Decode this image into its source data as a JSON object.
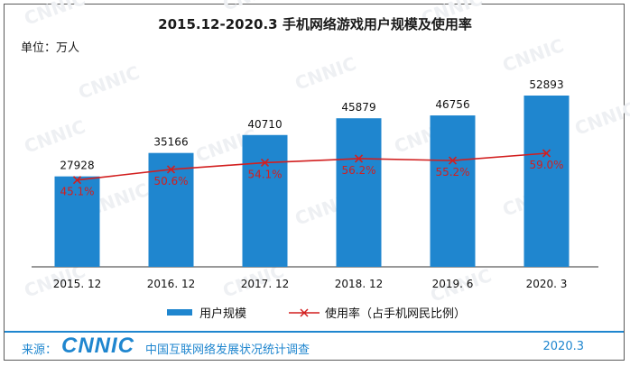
{
  "chart_data": {
    "type": "bar",
    "title": "2015.12-2020.3 手机网络游戏用户规模及使用率",
    "unit": "单位：万人",
    "categories": [
      "2015. 12",
      "2016. 12",
      "2017. 12",
      "2018. 12",
      "2019. 6",
      "2020. 3"
    ],
    "series": [
      {
        "name": "用户规模",
        "type": "bar",
        "values": [
          27928,
          35166,
          40710,
          45879,
          46756,
          52893
        ],
        "labels": [
          "27928",
          "35166",
          "40710",
          "45879",
          "46756",
          "52893"
        ],
        "color": "#1f86cf"
      },
      {
        "name": "使用率（占手机网民比例）",
        "type": "line",
        "values": [
          45.1,
          50.6,
          54.1,
          56.2,
          55.2,
          59.0
        ],
        "labels": [
          "45.1%",
          "50.6%",
          "54.1%",
          "56.2%",
          "55.2%",
          "59.0%"
        ],
        "color": "#d21f1f",
        "marker": "x"
      }
    ],
    "bar_ylim": [
      0,
      60000
    ],
    "rate_ylim": [
      0,
      160
    ],
    "legend_position": "bottom",
    "grid": false
  },
  "footer": {
    "source_label": "来源：",
    "logo_text": "CNNIC",
    "organization": "中国互联网络发展状况统计调查",
    "date": "2020.3"
  },
  "watermark": "CNNIC"
}
